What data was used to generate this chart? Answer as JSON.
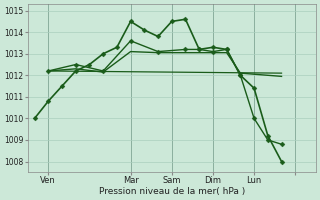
{
  "title": "",
  "xlabel": "Pression niveau de la mer( hPa )",
  "ylabel": "",
  "background_color": "#cce8d8",
  "grid_color": "#aacfbe",
  "line_color": "#1a5c1a",
  "ylim": [
    1007.5,
    1015.3
  ],
  "xlim": [
    0,
    42
  ],
  "x_ticks": [
    3,
    15,
    21,
    27,
    33,
    39
  ],
  "x_tick_labels": [
    "Ven",
    "Mar",
    "Sam",
    "Dim",
    "Lun",
    ""
  ],
  "vlines": [
    3,
    15,
    21,
    27,
    33,
    39
  ],
  "series": [
    {
      "x": [
        1,
        3,
        5,
        7,
        9,
        11,
        13,
        15,
        17,
        19,
        21,
        23,
        25,
        27,
        29,
        31,
        33,
        35,
        37
      ],
      "y": [
        1010.0,
        1010.8,
        1011.5,
        1012.2,
        1012.5,
        1013.0,
        1013.3,
        1014.5,
        1014.1,
        1013.8,
        1014.5,
        1014.6,
        1013.2,
        1013.3,
        1013.2,
        1012.0,
        1011.4,
        1009.2,
        1008.0
      ],
      "marker": "D",
      "markersize": 2.5,
      "linewidth": 1.2,
      "zorder": 5
    },
    {
      "x": [
        3,
        7,
        11,
        15,
        19,
        23,
        25,
        27,
        29,
        31,
        33,
        35,
        37
      ],
      "y": [
        1012.2,
        1012.5,
        1012.2,
        1013.6,
        1013.1,
        1013.2,
        1013.2,
        1013.1,
        1013.2,
        1012.0,
        1010.0,
        1009.0,
        1008.8
      ],
      "marker": "D",
      "markersize": 2.5,
      "linewidth": 1.0,
      "zorder": 4
    },
    {
      "x": [
        3,
        7,
        11,
        15,
        19,
        23,
        25,
        27,
        29,
        31,
        33,
        35,
        37
      ],
      "y": [
        1012.2,
        1012.3,
        1012.15,
        1013.1,
        1013.05,
        1013.05,
        1013.05,
        1013.05,
        1013.05,
        1012.1,
        1012.05,
        1012.0,
        1011.95
      ],
      "marker": null,
      "markersize": 0,
      "linewidth": 1.0,
      "zorder": 3
    },
    {
      "x": [
        3,
        37
      ],
      "y": [
        1012.2,
        1012.1
      ],
      "marker": null,
      "markersize": 0,
      "linewidth": 0.9,
      "zorder": 2
    }
  ]
}
